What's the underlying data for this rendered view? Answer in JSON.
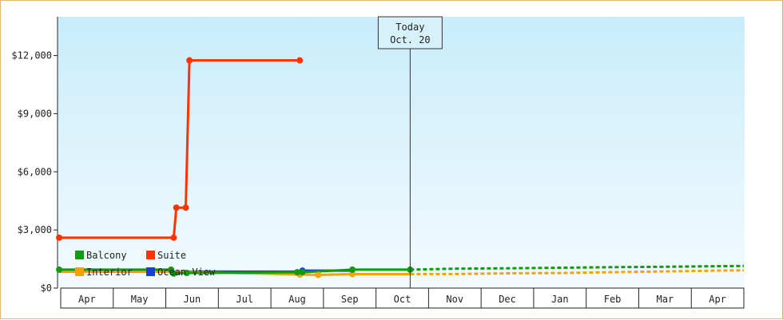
{
  "chart_data": {
    "type": "line",
    "title": "",
    "xlabel": "",
    "ylabel": "",
    "ylim": [
      0,
      14000
    ],
    "y_ticks": [
      "$0",
      "$3,000",
      "$6,000",
      "$9,000",
      "$12,000"
    ],
    "y_tick_values": [
      0,
      3000,
      6000,
      9000,
      12000
    ],
    "months": [
      "Apr",
      "May",
      "Jun",
      "Jul",
      "Aug",
      "Sep",
      "Oct",
      "Nov",
      "Dec",
      "Jan",
      "Feb",
      "Mar",
      "Apr"
    ],
    "x_axis": "month index from start of Apr (0) to end of Apr next year (13)",
    "today": {
      "line1": "Today",
      "line2": "Oct. 20",
      "x": 6.65
    },
    "legend": [
      {
        "name": "Balcony",
        "color": "#139a13"
      },
      {
        "name": "Suite",
        "color": "#ff3300"
      },
      {
        "name": "Interior",
        "color": "#f5a300"
      },
      {
        "name": "Ocean View",
        "color": "#1a3fd6"
      }
    ],
    "series": [
      {
        "name": "Suite",
        "color": "#ff3300",
        "points": [
          [
            -0.03,
            2600
          ],
          [
            2.15,
            2600
          ],
          [
            2.2,
            4150
          ],
          [
            2.38,
            4150
          ],
          [
            2.45,
            11750
          ],
          [
            4.55,
            11750
          ]
        ],
        "dashed": []
      },
      {
        "name": "Ocean View",
        "color": "#1a3fd6",
        "points": [
          [
            -0.03,
            850
          ],
          [
            2.1,
            850
          ],
          [
            2.4,
            850
          ],
          [
            4.5,
            850
          ],
          [
            4.6,
            900
          ],
          [
            5.55,
            900
          ]
        ],
        "dashed": []
      },
      {
        "name": "Interior",
        "color": "#f5a300",
        "points": [
          [
            -0.03,
            850
          ],
          [
            2.1,
            850
          ],
          [
            4.55,
            700
          ],
          [
            4.9,
            680
          ],
          [
            5.55,
            720
          ],
          [
            6.65,
            720
          ]
        ],
        "dashed": [
          [
            6.65,
            720
          ],
          [
            7.4,
            720
          ],
          [
            8.5,
            760
          ],
          [
            9.5,
            780
          ],
          [
            10.5,
            820
          ],
          [
            11.5,
            860
          ],
          [
            12.5,
            900
          ],
          [
            13.0,
            920
          ]
        ]
      },
      {
        "name": "Balcony",
        "color": "#139a13",
        "points": [
          [
            -0.03,
            950
          ],
          [
            2.1,
            950
          ],
          [
            2.15,
            750
          ],
          [
            2.4,
            780
          ],
          [
            4.5,
            820
          ],
          [
            4.6,
            820
          ],
          [
            5.55,
            950
          ],
          [
            6.65,
            950
          ]
        ],
        "dashed": [
          [
            6.65,
            950
          ],
          [
            7.5,
            1000
          ],
          [
            8.5,
            1020
          ],
          [
            9.5,
            1050
          ],
          [
            10.5,
            1080
          ],
          [
            11.5,
            1100
          ],
          [
            12.5,
            1130
          ],
          [
            13.0,
            1140
          ]
        ]
      }
    ],
    "markers": [
      {
        "series": "Suite",
        "color": "#ff3300",
        "xy": [
          [
            -0.03,
            2600
          ],
          [
            2.15,
            2600
          ],
          [
            2.2,
            4150
          ],
          [
            2.38,
            4150
          ],
          [
            2.45,
            11750
          ],
          [
            4.55,
            11750
          ]
        ]
      },
      {
        "series": "Interior",
        "color": "#f5a300",
        "xy": [
          [
            4.55,
            700
          ],
          [
            4.9,
            680
          ],
          [
            5.55,
            720
          ]
        ]
      },
      {
        "series": "Ocean View",
        "color": "#1a3fd6",
        "xy": [
          [
            4.6,
            900
          ]
        ]
      },
      {
        "series": "Balcony",
        "color": "#139a13",
        "xy": [
          [
            -0.03,
            950
          ],
          [
            2.1,
            950
          ],
          [
            2.15,
            750
          ],
          [
            2.4,
            780
          ],
          [
            4.5,
            820
          ],
          [
            4.6,
            820
          ],
          [
            5.55,
            950
          ],
          [
            6.65,
            950
          ]
        ]
      }
    ]
  }
}
